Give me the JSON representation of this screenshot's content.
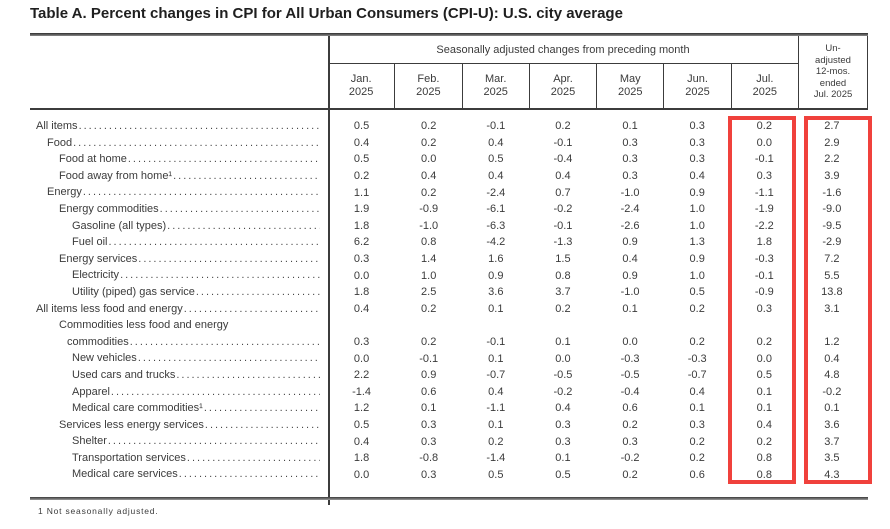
{
  "title": "Table A. Percent changes in CPI for All Urban Consumers (CPI-U): U.S. city average",
  "table": {
    "group_header": "Seasonally adjusted changes from preceding month",
    "month_columns": [
      {
        "month": "Jan.",
        "year": "2025"
      },
      {
        "month": "Feb.",
        "year": "2025"
      },
      {
        "month": "Mar.",
        "year": "2025"
      },
      {
        "month": "Apr.",
        "year": "2025"
      },
      {
        "month": "May",
        "year": "2025"
      },
      {
        "month": "Jun.",
        "year": "2025"
      },
      {
        "month": "Jul.",
        "year": "2025"
      }
    ],
    "unadjusted_header_lines": [
      "Un-",
      "adjusted",
      "12-mos.",
      "ended",
      "Jul. 2025"
    ],
    "rows": [
      {
        "label": "All items",
        "indent": 0,
        "values": [
          "0.5",
          "0.2",
          "-0.1",
          "0.2",
          "0.1",
          "0.3",
          "0.2",
          "2.7"
        ]
      },
      {
        "label": "Food",
        "indent": 1,
        "values": [
          "0.4",
          "0.2",
          "0.4",
          "-0.1",
          "0.3",
          "0.3",
          "0.0",
          "2.9"
        ]
      },
      {
        "label": "Food at home",
        "indent": 2,
        "values": [
          "0.5",
          "0.0",
          "0.5",
          "-0.4",
          "0.3",
          "0.3",
          "-0.1",
          "2.2"
        ]
      },
      {
        "label": "Food away from home¹",
        "indent": 2,
        "values": [
          "0.2",
          "0.4",
          "0.4",
          "0.4",
          "0.3",
          "0.4",
          "0.3",
          "3.9"
        ]
      },
      {
        "label": "Energy",
        "indent": 1,
        "values": [
          "1.1",
          "0.2",
          "-2.4",
          "0.7",
          "-1.0",
          "0.9",
          "-1.1",
          "-1.6"
        ]
      },
      {
        "label": "Energy commodities",
        "indent": 2,
        "values": [
          "1.9",
          "-0.9",
          "-6.1",
          "-0.2",
          "-2.4",
          "1.0",
          "-1.9",
          "-9.0"
        ]
      },
      {
        "label": "Gasoline (all types)",
        "indent": 3,
        "values": [
          "1.8",
          "-1.0",
          "-6.3",
          "-0.1",
          "-2.6",
          "1.0",
          "-2.2",
          "-9.5"
        ]
      },
      {
        "label": "Fuel oil",
        "indent": 3,
        "values": [
          "6.2",
          "0.8",
          "-4.2",
          "-1.3",
          "0.9",
          "1.3",
          "1.8",
          "-2.9"
        ]
      },
      {
        "label": "Energy services",
        "indent": 2,
        "values": [
          "0.3",
          "1.4",
          "1.6",
          "1.5",
          "0.4",
          "0.9",
          "-0.3",
          "7.2"
        ]
      },
      {
        "label": "Electricity",
        "indent": 3,
        "values": [
          "0.0",
          "1.0",
          "0.9",
          "0.8",
          "0.9",
          "1.0",
          "-0.1",
          "5.5"
        ]
      },
      {
        "label": "Utility (piped) gas service",
        "indent": 3,
        "values": [
          "1.8",
          "2.5",
          "3.6",
          "3.7",
          "-1.0",
          "0.5",
          "-0.9",
          "13.8"
        ]
      },
      {
        "label": "All items less food and energy",
        "indent": 0,
        "values": [
          "0.4",
          "0.2",
          "0.1",
          "0.2",
          "0.1",
          "0.2",
          "0.3",
          "3.1"
        ]
      },
      {
        "label": "Commodities less food and energy",
        "label_line2": "commodities",
        "indent": 2,
        "values": [
          "0.3",
          "0.2",
          "-0.1",
          "0.1",
          "0.0",
          "0.2",
          "0.2",
          "1.2"
        ]
      },
      {
        "label": "New vehicles",
        "indent": 3,
        "values": [
          "0.0",
          "-0.1",
          "0.1",
          "0.0",
          "-0.3",
          "-0.3",
          "0.0",
          "0.4"
        ]
      },
      {
        "label": "Used cars and trucks",
        "indent": 3,
        "values": [
          "2.2",
          "0.9",
          "-0.7",
          "-0.5",
          "-0.5",
          "-0.7",
          "0.5",
          "4.8"
        ]
      },
      {
        "label": "Apparel",
        "indent": 3,
        "values": [
          "-1.4",
          "0.6",
          "0.4",
          "-0.2",
          "-0.4",
          "0.4",
          "0.1",
          "-0.2"
        ]
      },
      {
        "label": "Medical care commodities¹",
        "indent": 3,
        "values": [
          "1.2",
          "0.1",
          "-1.1",
          "0.4",
          "0.6",
          "0.1",
          "0.1",
          "0.1"
        ]
      },
      {
        "label": "Services less energy services",
        "indent": 2,
        "values": [
          "0.5",
          "0.3",
          "0.1",
          "0.3",
          "0.2",
          "0.3",
          "0.4",
          "3.6"
        ]
      },
      {
        "label": "Shelter",
        "indent": 3,
        "values": [
          "0.4",
          "0.3",
          "0.2",
          "0.3",
          "0.3",
          "0.2",
          "0.2",
          "3.7"
        ]
      },
      {
        "label": "Transportation services",
        "indent": 3,
        "values": [
          "1.8",
          "-0.8",
          "-1.4",
          "0.1",
          "-0.2",
          "0.2",
          "0.8",
          "3.5"
        ]
      },
      {
        "label": "Medical care services",
        "indent": 3,
        "values": [
          "0.0",
          "0.3",
          "0.5",
          "0.5",
          "0.2",
          "0.6",
          "0.8",
          "4.3"
        ]
      }
    ],
    "footnote": "1 Not seasonally adjusted."
  },
  "highlights": {
    "color": "#f0413c",
    "boxes": [
      "jul-2025-column",
      "12-month-column"
    ]
  }
}
